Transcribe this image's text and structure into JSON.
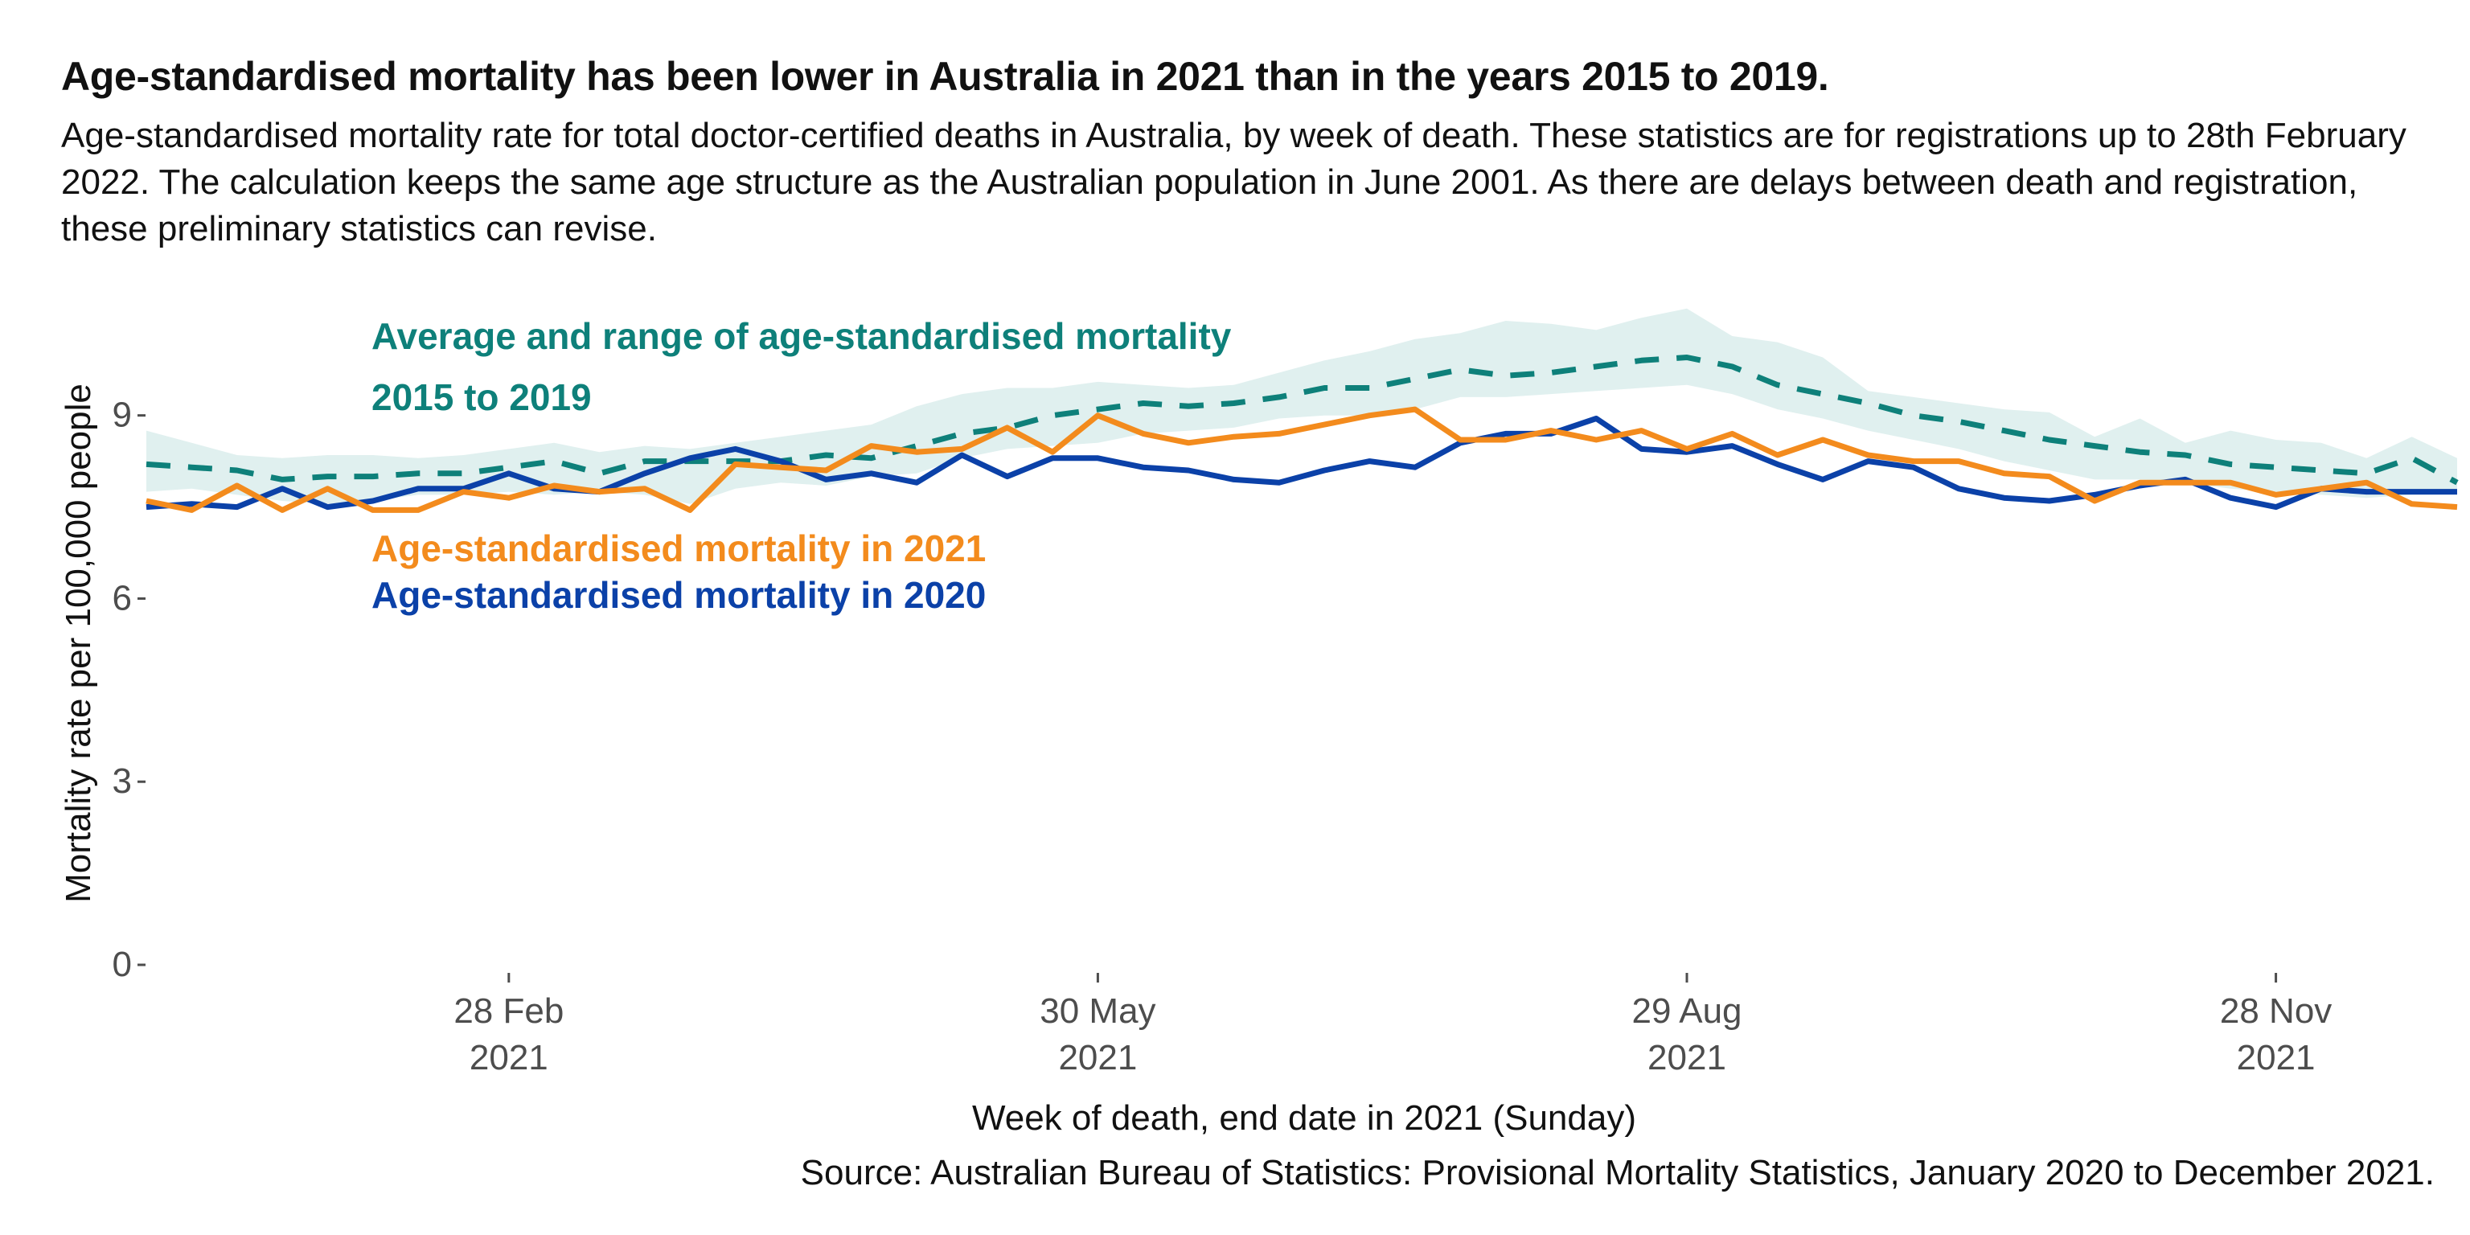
{
  "chart_data": {
    "type": "line",
    "title": "Age-standardised mortality has been lower in Australia in 2021 than in the years 2015 to 2019.",
    "subtitle": "Age-standardised mortality rate for total doctor-certified deaths in Australia, by week of death. These statistics are for registrations up to 28th February 2022. The calculation keeps the same age structure as the Australian population in June 2001. As there are delays between death and registration, these preliminary statistics can revise.",
    "xlabel": "Week of death, end date in 2021 (Sunday)",
    "ylabel": "Mortality rate per 100,000 people",
    "source": "Source: Australian Bureau of Statistics: Provisional Mortality Statistics, January 2020 to December 2021.",
    "ylim": [
      0,
      10.8
    ],
    "xlim": [
      "2021-01-03",
      "2021-12-26"
    ],
    "x_ticks": [
      {
        "date": "2021-02-28",
        "label": "28 Feb",
        "label2": "2021"
      },
      {
        "date": "2021-05-30",
        "label": "30 May",
        "label2": "2021"
      },
      {
        "date": "2021-08-29",
        "label": "29 Aug",
        "label2": "2021"
      },
      {
        "date": "2021-11-28",
        "label": "28 Nov",
        "label2": "2021"
      }
    ],
    "y_ticks": [
      0,
      3,
      6,
      9
    ],
    "grid": false,
    "colors": {
      "avg": "#0e807a",
      "range": "#e0f0ef",
      "y2021": "#f38b1d",
      "y2020": "#0b41a8"
    },
    "annotations": {
      "avg_line1": "Average and range of age-standardised mortality",
      "avg_line2": "2015 to 2019",
      "y2021": "Age-standardised mortality in 2021",
      "y2020": "Age-standardised mortality in 2020"
    },
    "x": [
      "2021-01-03",
      "2021-01-10",
      "2021-01-17",
      "2021-01-24",
      "2021-01-31",
      "2021-02-07",
      "2021-02-14",
      "2021-02-21",
      "2021-02-28",
      "2021-03-07",
      "2021-03-14",
      "2021-03-21",
      "2021-03-28",
      "2021-04-04",
      "2021-04-11",
      "2021-04-18",
      "2021-04-25",
      "2021-05-02",
      "2021-05-09",
      "2021-05-16",
      "2021-05-23",
      "2021-05-30",
      "2021-06-06",
      "2021-06-13",
      "2021-06-20",
      "2021-06-27",
      "2021-07-04",
      "2021-07-11",
      "2021-07-18",
      "2021-07-25",
      "2021-08-01",
      "2021-08-08",
      "2021-08-15",
      "2021-08-22",
      "2021-08-29",
      "2021-09-05",
      "2021-09-12",
      "2021-09-19",
      "2021-09-26",
      "2021-10-03",
      "2021-10-10",
      "2021-10-17",
      "2021-10-24",
      "2021-10-31",
      "2021-11-07",
      "2021-11-14",
      "2021-11-21",
      "2021-11-28",
      "2021-12-05",
      "2021-12-12",
      "2021-12-19",
      "2021-12-26"
    ],
    "series": [
      {
        "name": "Age-standardised mortality in 2021",
        "key": "y2021",
        "values": [
          7.6,
          7.45,
          7.85,
          7.45,
          7.8,
          7.45,
          7.45,
          7.75,
          7.65,
          7.85,
          7.75,
          7.8,
          7.45,
          8.2,
          8.15,
          8.1,
          8.5,
          8.4,
          8.45,
          8.8,
          8.4,
          9.0,
          8.7,
          8.55,
          8.65,
          8.7,
          8.85,
          9.0,
          9.1,
          8.6,
          8.6,
          8.75,
          8.6,
          8.75,
          8.45,
          8.7,
          8.35,
          8.6,
          8.35,
          8.25,
          8.25,
          8.05,
          8.0,
          7.6,
          7.9,
          7.9,
          7.9,
          7.7,
          7.8,
          7.9,
          7.55,
          7.5
        ]
      },
      {
        "name": "Age-standardised mortality in 2020",
        "key": "y2020",
        "values": [
          7.5,
          7.55,
          7.5,
          7.8,
          7.5,
          7.6,
          7.8,
          7.8,
          8.05,
          7.8,
          7.75,
          8.05,
          8.3,
          8.45,
          8.25,
          7.95,
          8.05,
          7.9,
          8.35,
          8.0,
          8.3,
          8.3,
          8.15,
          8.1,
          7.95,
          7.9,
          8.1,
          8.25,
          8.15,
          8.55,
          8.7,
          8.7,
          8.95,
          8.45,
          8.4,
          8.5,
          8.2,
          7.95,
          8.25,
          8.15,
          7.8,
          7.65,
          7.6,
          7.7,
          7.85,
          7.95,
          7.65,
          7.5,
          7.8,
          7.75,
          7.75,
          7.75
        ]
      },
      {
        "name": "Average and range of age-standardised mortality 2015 to 2019",
        "key": "avg",
        "values": [
          8.2,
          8.15,
          8.1,
          7.95,
          8.0,
          8.0,
          8.05,
          8.05,
          8.15,
          8.25,
          8.05,
          8.25,
          8.25,
          8.25,
          8.25,
          8.35,
          8.3,
          8.5,
          8.7,
          8.8,
          9.0,
          9.1,
          9.2,
          9.15,
          9.2,
          9.3,
          9.45,
          9.45,
          9.6,
          9.75,
          9.65,
          9.7,
          9.8,
          9.9,
          9.95,
          9.8,
          9.5,
          9.35,
          9.2,
          9.0,
          8.9,
          8.75,
          8.6,
          8.5,
          8.4,
          8.35,
          8.2,
          8.15,
          8.1,
          8.05,
          8.3,
          7.9
        ],
        "range_low": [
          7.75,
          7.8,
          7.7,
          7.6,
          7.55,
          7.6,
          7.7,
          7.7,
          7.75,
          7.7,
          7.75,
          7.7,
          7.55,
          7.8,
          7.9,
          7.85,
          8.0,
          8.05,
          8.3,
          8.45,
          8.5,
          8.55,
          8.7,
          8.75,
          8.8,
          8.95,
          9.0,
          9.0,
          9.1,
          9.3,
          9.3,
          9.35,
          9.4,
          9.45,
          9.5,
          9.35,
          9.1,
          8.95,
          8.75,
          8.6,
          8.45,
          8.25,
          8.1,
          7.95,
          7.95,
          7.9,
          7.8,
          7.75,
          7.7,
          7.65,
          7.7,
          7.7
        ],
        "range_high": [
          8.75,
          8.55,
          8.35,
          8.3,
          8.35,
          8.35,
          8.3,
          8.35,
          8.45,
          8.55,
          8.4,
          8.5,
          8.45,
          8.55,
          8.65,
          8.75,
          8.85,
          9.15,
          9.35,
          9.45,
          9.45,
          9.55,
          9.5,
          9.45,
          9.5,
          9.7,
          9.9,
          10.05,
          10.25,
          10.35,
          10.55,
          10.5,
          10.4,
          10.6,
          10.75,
          10.3,
          10.2,
          9.95,
          9.4,
          9.3,
          9.2,
          9.1,
          9.05,
          8.65,
          8.95,
          8.55,
          8.75,
          8.6,
          8.55,
          8.3,
          8.65,
          8.3
        ]
      }
    ]
  }
}
